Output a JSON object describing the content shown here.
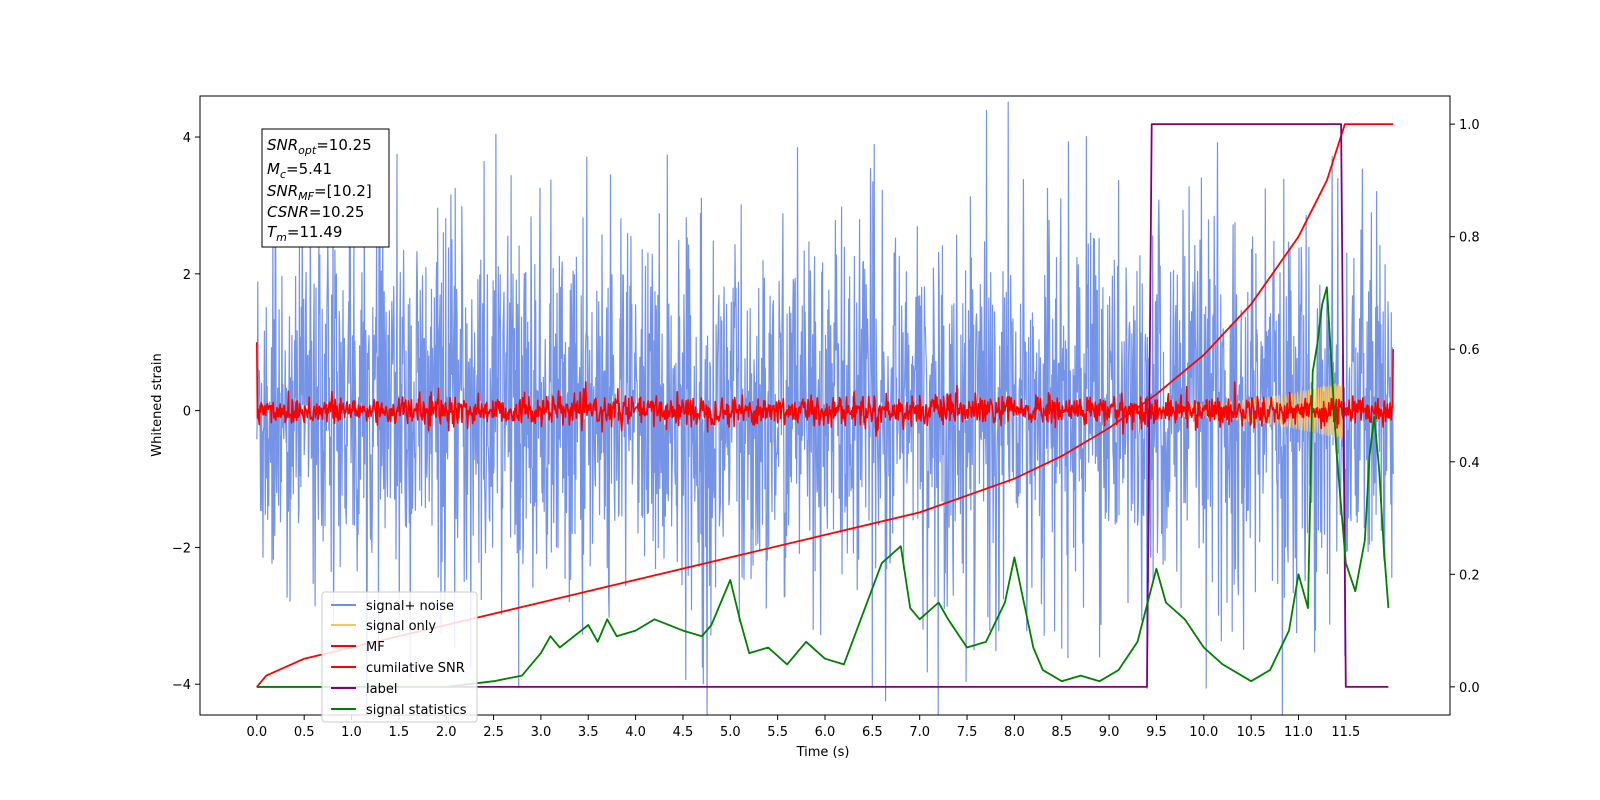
{
  "chart_data": {
    "type": "line",
    "title": "",
    "xlabel": "Time (s)",
    "ylabel": "Whitened strain",
    "y2label": "",
    "xlim": [
      -0.6,
      12.6
    ],
    "ylim": [
      -4.45,
      4.6
    ],
    "y2lim": [
      -0.05,
      1.05
    ],
    "x_ticks": [
      "0.0",
      "0.5",
      "1.0",
      "1.5",
      "2.0",
      "2.5",
      "3.0",
      "3.5",
      "4.0",
      "4.5",
      "5.0",
      "5.5",
      "6.0",
      "6.5",
      "7.0",
      "7.5",
      "8.0",
      "8.5",
      "9.0",
      "9.5",
      "10.0",
      "10.5",
      "11.0",
      "11.5"
    ],
    "y_ticks": [
      "-4",
      "-2",
      "0",
      "2",
      "4"
    ],
    "y2_ticks": [
      "0.0",
      "0.2",
      "0.4",
      "0.6",
      "0.8",
      "1.0"
    ],
    "grid": false,
    "legend_position": "lower-left",
    "annotation": {
      "lines": [
        {
          "base": "SNR",
          "sub": "opt",
          "value": "=10.25"
        },
        {
          "base": "M",
          "sub": "c",
          "value": "=5.41"
        },
        {
          "base": "SNR",
          "sub": "MF",
          "value": "=[10.2]"
        },
        {
          "base": "CSNR",
          "sub": "",
          "value": "=10.25"
        },
        {
          "base": "T",
          "sub": "m",
          "value": "=11.49"
        }
      ]
    },
    "series": [
      {
        "name": "signal+ noise",
        "color": "#6f8ee6",
        "kind": "noise",
        "axis": "left",
        "x_range": [
          0,
          12
        ],
        "band": [
          -1.8,
          1.8
        ]
      },
      {
        "name": "signal only",
        "color": "#f5c36b",
        "kind": "chirp",
        "axis": "left",
        "x_range": [
          9.4,
          11.49
        ]
      },
      {
        "name": "MF",
        "color": "#ff0000",
        "kind": "noise",
        "axis": "left",
        "x_range": [
          0,
          12
        ],
        "band": [
          -0.2,
          0.2
        ]
      },
      {
        "name": "cumilative SNR",
        "color": "#ff0000",
        "kind": "line",
        "axis": "right",
        "x": [
          0,
          0.1,
          0.5,
          1.0,
          2.0,
          3.0,
          4.0,
          5.0,
          6.0,
          7.0,
          8.0,
          8.5,
          9.0,
          9.5,
          10.0,
          10.5,
          11.0,
          11.3,
          11.49,
          12.0
        ],
        "y": [
          0.0,
          0.02,
          0.05,
          0.07,
          0.11,
          0.15,
          0.19,
          0.23,
          0.27,
          0.31,
          0.37,
          0.41,
          0.46,
          0.52,
          0.59,
          0.68,
          0.8,
          0.9,
          1.0,
          1.0
        ]
      },
      {
        "name": "label",
        "color": "#800080",
        "kind": "line",
        "axis": "right",
        "x": [
          0,
          9.4,
          9.45,
          11.45,
          11.5,
          11.95
        ],
        "y": [
          0,
          0,
          1,
          1,
          0,
          0
        ]
      },
      {
        "name": "signal statistics",
        "color": "#008000",
        "kind": "line",
        "axis": "right",
        "x": [
          0,
          1.0,
          2.0,
          2.5,
          2.8,
          3.0,
          3.1,
          3.2,
          3.5,
          3.6,
          3.7,
          3.8,
          4.0,
          4.2,
          4.5,
          4.7,
          4.8,
          5.0,
          5.1,
          5.2,
          5.4,
          5.6,
          5.8,
          6.0,
          6.2,
          6.4,
          6.6,
          6.8,
          6.9,
          7.0,
          7.2,
          7.3,
          7.5,
          7.7,
          7.9,
          8.0,
          8.1,
          8.2,
          8.3,
          8.5,
          8.7,
          8.9,
          9.1,
          9.3,
          9.5,
          9.6,
          9.8,
          10.0,
          10.2,
          10.5,
          10.7,
          10.9,
          11.0,
          11.1,
          11.15,
          11.2,
          11.25,
          11.3,
          11.35,
          11.4,
          11.5,
          11.6,
          11.7,
          11.75,
          11.8,
          11.85,
          11.9,
          11.95
        ],
        "y": [
          0.0,
          0.0,
          0.0,
          0.01,
          0.02,
          0.06,
          0.09,
          0.07,
          0.11,
          0.08,
          0.12,
          0.09,
          0.1,
          0.12,
          0.1,
          0.09,
          0.11,
          0.19,
          0.12,
          0.06,
          0.07,
          0.04,
          0.08,
          0.05,
          0.04,
          0.13,
          0.22,
          0.25,
          0.14,
          0.12,
          0.15,
          0.12,
          0.07,
          0.08,
          0.15,
          0.23,
          0.15,
          0.07,
          0.03,
          0.01,
          0.02,
          0.01,
          0.03,
          0.08,
          0.21,
          0.15,
          0.12,
          0.07,
          0.04,
          0.01,
          0.03,
          0.1,
          0.2,
          0.14,
          0.56,
          0.61,
          0.68,
          0.71,
          0.57,
          0.42,
          0.22,
          0.17,
          0.26,
          0.41,
          0.48,
          0.39,
          0.25,
          0.14
        ]
      }
    ]
  }
}
